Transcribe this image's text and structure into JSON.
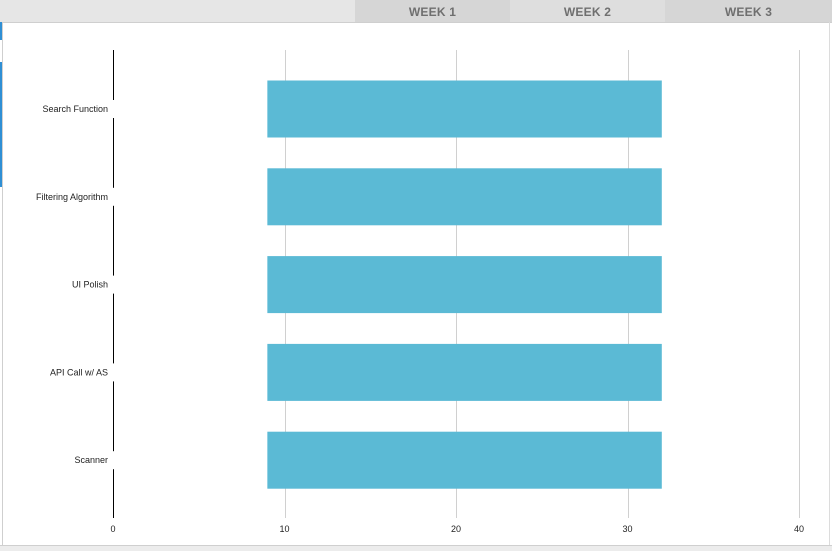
{
  "header": {
    "weeks": [
      "WEEK 1",
      "WEEK 2",
      "WEEK 3"
    ]
  },
  "chart_data": {
    "type": "bar",
    "orientation": "horizontal",
    "stacked": true,
    "categories": [
      "Search Function",
      "Filtering Algorithm",
      "UI Polish",
      "API Call w/ AS",
      "Scanner"
    ],
    "series": [
      {
        "values": [
          9,
          9,
          9,
          9,
          9
        ],
        "color": "transparent"
      },
      {
        "values": [
          23,
          23,
          23,
          23,
          23
        ],
        "color": "#5bbad5"
      }
    ],
    "xlim": [
      0,
      40
    ],
    "xticks": [
      0,
      10,
      20,
      30,
      40
    ],
    "grid": true,
    "title": "",
    "xlabel": "",
    "ylabel": ""
  }
}
